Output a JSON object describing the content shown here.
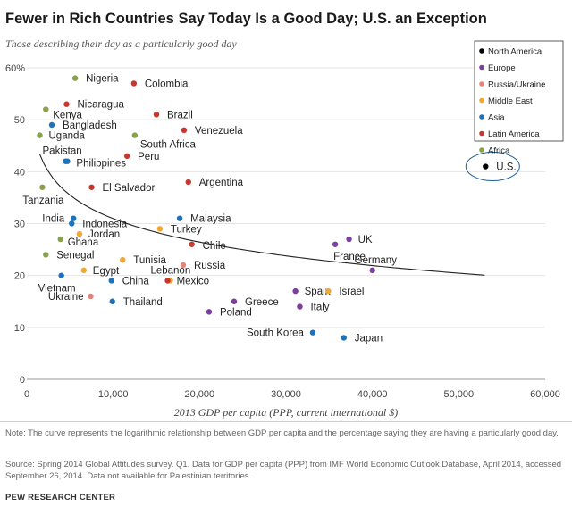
{
  "title": "Fewer in Rich Countries Say Today Is a Good Day; U.S. an Exception",
  "subtitle": "Those describing their day as a particularly good day",
  "note": "Note: The curve represents the logarithmic relationship between GDP per capita and the percentage saying they are having a particularly good day.",
  "source": "Source: Spring 2014 Global Attitudes survey. Q1. Data for GDP per capita (PPP) from IMF World Economic Outlook Database, April 2014, accessed September 26, 2014. Data not available for Palestinian territories.",
  "credit": "PEW RESEARCH CENTER",
  "colors": {
    "North America": "#000000",
    "Europe": "#7b3f9e",
    "Russia/Ukraine": "#e5857a",
    "Middle East": "#f0a830",
    "Asia": "#1f72b8",
    "Latin America": "#c8372d",
    "Africa": "#8aa04a"
  },
  "chart_data": {
    "type": "scatter",
    "xlabel": "2013 GDP per capita (PPP, current international $)",
    "ylabel": "",
    "xlim": [
      0,
      60000
    ],
    "ylim": [
      0,
      60
    ],
    "x_ticks": [
      "0",
      "10,000",
      "20,000",
      "30,000",
      "40,000",
      "50,000",
      "60,000"
    ],
    "y_ticks": [
      "0",
      "10",
      "20",
      "30",
      "40",
      "50",
      "60%"
    ],
    "legend": [
      "North America",
      "Europe",
      "Russia/Ukraine",
      "Middle East",
      "Asia",
      "Latin America",
      "Africa"
    ],
    "legend_position": "top-right",
    "trendline": "logarithmic",
    "points": [
      {
        "label": "Nigeria",
        "region": "Africa",
        "x": 5600,
        "y": 58
      },
      {
        "label": "Colombia",
        "region": "Latin America",
        "x": 12400,
        "y": 57
      },
      {
        "label": "Nicaragua",
        "region": "Latin America",
        "x": 4600,
        "y": 53
      },
      {
        "label": "Kenya",
        "region": "Africa",
        "x": 2200,
        "y": 52
      },
      {
        "label": "Brazil",
        "region": "Latin America",
        "x": 15000,
        "y": 51
      },
      {
        "label": "Bangladesh",
        "region": "Asia",
        "x": 2900,
        "y": 49
      },
      {
        "label": "Venezuela",
        "region": "Latin America",
        "x": 18200,
        "y": 48
      },
      {
        "label": "Uganda",
        "region": "Africa",
        "x": 1500,
        "y": 47
      },
      {
        "label": "South Africa",
        "region": "Africa",
        "x": 12500,
        "y": 47
      },
      {
        "label": "Peru",
        "region": "Latin America",
        "x": 11600,
        "y": 43
      },
      {
        "label": "Pakistan",
        "region": "Asia",
        "x": 4500,
        "y": 42
      },
      {
        "label": "Philippines",
        "region": "Asia",
        "x": 4700,
        "y": 42
      },
      {
        "label": "U.S.",
        "region": "North America",
        "x": 53100,
        "y": 41
      },
      {
        "label": "Argentina",
        "region": "Latin America",
        "x": 18700,
        "y": 38
      },
      {
        "label": "Tanzania",
        "region": "Africa",
        "x": 1800,
        "y": 37
      },
      {
        "label": "El Salvador",
        "region": "Latin America",
        "x": 7500,
        "y": 37
      },
      {
        "label": "India",
        "region": "Asia",
        "x": 5400,
        "y": 31
      },
      {
        "label": "Malaysia",
        "region": "Asia",
        "x": 17700,
        "y": 31
      },
      {
        "label": "Indonesia",
        "region": "Asia",
        "x": 5200,
        "y": 30
      },
      {
        "label": "Turkey",
        "region": "Middle East",
        "x": 15400,
        "y": 29
      },
      {
        "label": "Jordan",
        "region": "Middle East",
        "x": 6100,
        "y": 28
      },
      {
        "label": "UK",
        "region": "Europe",
        "x": 37300,
        "y": 27
      },
      {
        "label": "Ghana",
        "region": "Africa",
        "x": 3900,
        "y": 27
      },
      {
        "label": "Chile",
        "region": "Latin America",
        "x": 19100,
        "y": 26
      },
      {
        "label": "France",
        "region": "Europe",
        "x": 35700,
        "y": 26
      },
      {
        "label": "Senegal",
        "region": "Africa",
        "x": 2200,
        "y": 24
      },
      {
        "label": "Tunisia",
        "region": "Middle East",
        "x": 11100,
        "y": 23
      },
      {
        "label": "Russia",
        "region": "Russia/Ukraine",
        "x": 18100,
        "y": 22
      },
      {
        "label": "Egypt",
        "region": "Middle East",
        "x": 6600,
        "y": 21
      },
      {
        "label": "Germany",
        "region": "Europe",
        "x": 40000,
        "y": 21
      },
      {
        "label": "Vietnam",
        "region": "Asia",
        "x": 4000,
        "y": 20
      },
      {
        "label": "Lebanon",
        "region": "Middle East",
        "x": 16600,
        "y": 19
      },
      {
        "label": "Mexico",
        "region": "Latin America",
        "x": 16300,
        "y": 19
      },
      {
        "label": "China",
        "region": "Asia",
        "x": 9800,
        "y": 19
      },
      {
        "label": "Spain",
        "region": "Europe",
        "x": 31100,
        "y": 17
      },
      {
        "label": "Israel",
        "region": "Middle East",
        "x": 34900,
        "y": 17
      },
      {
        "label": "Ukraine",
        "region": "Russia/Ukraine",
        "x": 7400,
        "y": 16
      },
      {
        "label": "Thailand",
        "region": "Asia",
        "x": 9900,
        "y": 15
      },
      {
        "label": "Greece",
        "region": "Europe",
        "x": 24000,
        "y": 15
      },
      {
        "label": "Italy",
        "region": "Europe",
        "x": 31600,
        "y": 14
      },
      {
        "label": "Poland",
        "region": "Europe",
        "x": 21100,
        "y": 13
      },
      {
        "label": "South Korea",
        "region": "Asia",
        "x": 33100,
        "y": 9
      },
      {
        "label": "Japan",
        "region": "Asia",
        "x": 36700,
        "y": 8
      }
    ]
  }
}
